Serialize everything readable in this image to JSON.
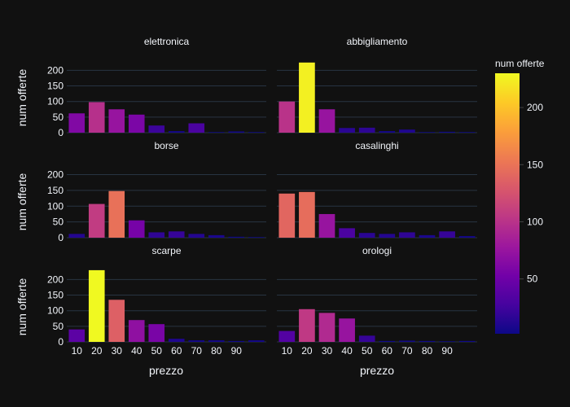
{
  "chart_data": {
    "type": "bar",
    "layout": "facet-grid 3x2",
    "x_tick_labels": [
      "10",
      "20",
      "30",
      "40",
      "50",
      "60",
      "70",
      "80",
      "90"
    ],
    "xlabel": "prezzo",
    "ylabel": "num offerte",
    "ylim": [
      0,
      235
    ],
    "y_ticks": [
      0,
      50,
      100,
      150,
      200
    ],
    "grid": true,
    "colorbar": {
      "title": "num offerte",
      "range": [
        2,
        230
      ],
      "ticks": [
        50,
        100,
        150,
        200
      ],
      "colorscale": [
        "#0d0887",
        "#46039f",
        "#7201a8",
        "#9c179e",
        "#bd3786",
        "#d8576b",
        "#ed7953",
        "#fb9f3a",
        "#fdca26",
        "#f0f921"
      ]
    },
    "panels": [
      {
        "title": "elettronica",
        "values": [
          62,
          98,
          75,
          58,
          23,
          5,
          30,
          2,
          4,
          2
        ]
      },
      {
        "title": "abbigliamento",
        "values": [
          100,
          225,
          75,
          15,
          16,
          5,
          10,
          2,
          3,
          2
        ]
      },
      {
        "title": "borse",
        "values": [
          12,
          107,
          148,
          55,
          17,
          20,
          12,
          8,
          3,
          2
        ]
      },
      {
        "title": "casalinghi",
        "values": [
          140,
          145,
          75,
          30,
          15,
          12,
          17,
          8,
          20,
          5
        ]
      },
      {
        "title": "scarpe",
        "values": [
          40,
          230,
          135,
          70,
          57,
          10,
          5,
          5,
          3,
          5
        ]
      },
      {
        "title": "orologi",
        "values": [
          35,
          105,
          93,
          75,
          20,
          3,
          4,
          3,
          2,
          3
        ]
      }
    ]
  }
}
